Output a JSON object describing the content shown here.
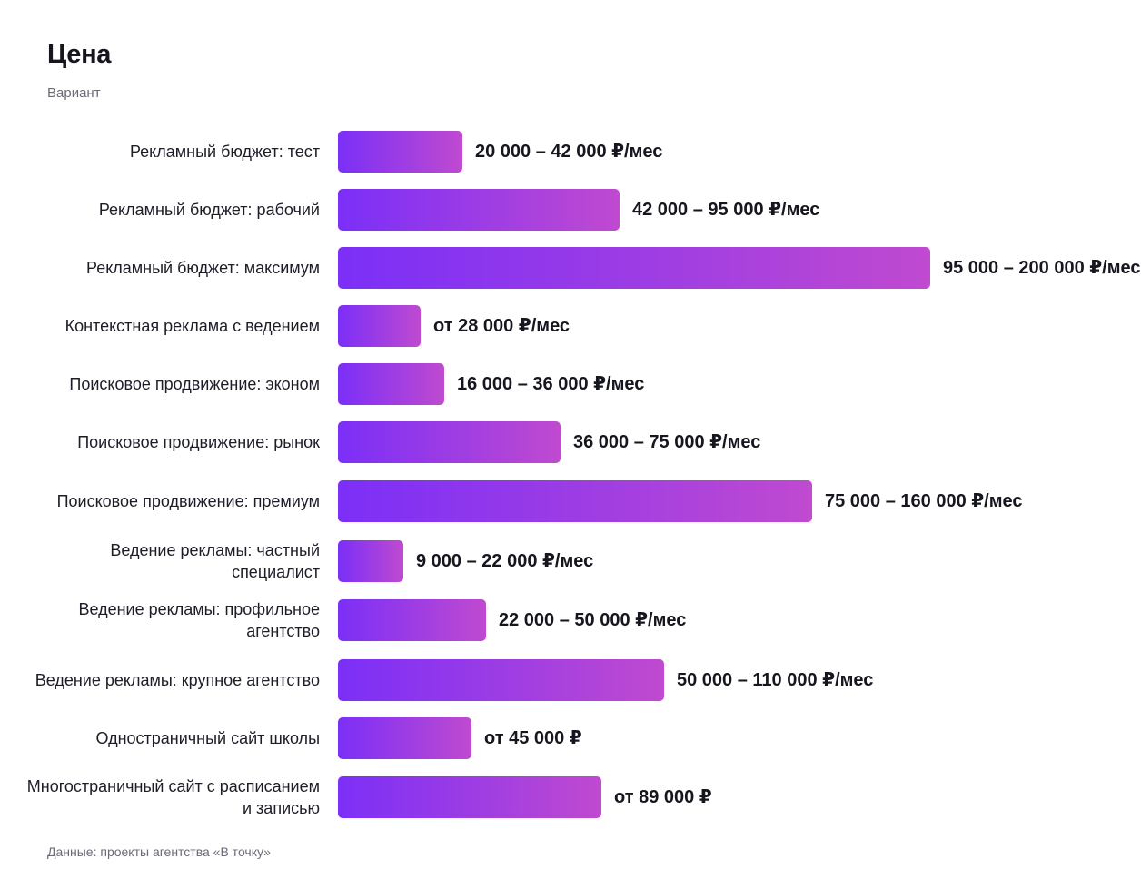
{
  "header": {
    "title": "Цена",
    "subtitle": "Вариант"
  },
  "footer": {
    "source": "Данные: проекты агентства «В точку»"
  },
  "colors": {
    "bar_start": "#7b2ff7",
    "bar_end": "#c04ad0",
    "text": "#16161f",
    "muted": "#6b6b78"
  },
  "chart_data": {
    "type": "bar",
    "orientation": "horizontal",
    "title": "Цена",
    "subtitle": "Вариант",
    "categories": [
      "Рекламный бюджет: тест",
      "Рекламный бюджет: рабочий",
      "Рекламный бюджет: максимум",
      "Контекстная реклама с ведением",
      "Поисковое продвижение: эконом",
      "Поисковое продвижение: рынок",
      "Поисковое продвижение: премиум",
      "Ведение рекламы: частный специалист",
      "Ведение рекламы: профильное агентство",
      "Ведение рекламы: крупное агентство",
      "Одностраничный сайт школы",
      "Многостраничный сайт с расписанием и записью"
    ],
    "values": [
      42000,
      95000,
      200000,
      28000,
      36000,
      75000,
      160000,
      22000,
      50000,
      110000,
      45000,
      89000
    ],
    "value_labels": [
      "20 000 – 42 000 ₽/мес",
      "42 000 – 95 000 ₽/мес",
      "95 000 – 200 000 ₽/мес",
      "от 28 000 ₽/мес",
      "16 000 – 36 000 ₽/мес",
      "36 000 – 75 000 ₽/мес",
      "75 000 – 160 000 ₽/мес",
      "9 000 – 22 000 ₽/мес",
      "22 000 – 50 000 ₽/мес",
      "50 000 – 110 000 ₽/мес",
      "от 45 000 ₽",
      "от 89 000 ₽"
    ],
    "xlim": [
      0,
      200000
    ],
    "grid": false,
    "legend": "none"
  }
}
